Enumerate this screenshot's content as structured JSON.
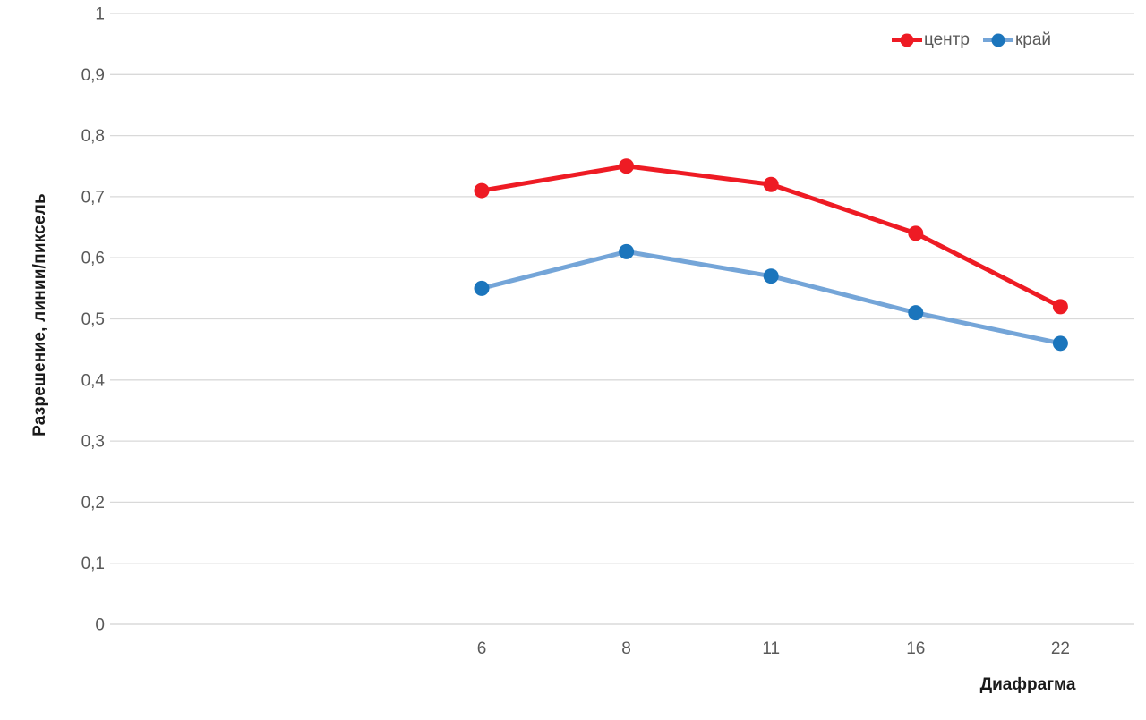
{
  "chart_data": {
    "type": "line",
    "categories": [
      "6",
      "8",
      "11",
      "16",
      "22"
    ],
    "series": [
      {
        "name": "центр",
        "values": [
          0.71,
          0.75,
          0.72,
          0.64,
          0.52
        ],
        "line_color": "#ee1b24",
        "marker_color": "#ee1b24"
      },
      {
        "name": "край",
        "values": [
          0.55,
          0.61,
          0.57,
          0.51,
          0.46
        ],
        "line_color": "#74a5d8",
        "marker_color": "#1b75bc"
      }
    ],
    "title": "",
    "xlabel": "Диафрагма",
    "ylabel": "Разрешение, линии/пиксель",
    "ylim": [
      0,
      1
    ],
    "ytick_step": 0.1,
    "ytick_labels": [
      "0",
      "0,1",
      "0,2",
      "0,3",
      "0,4",
      "0,5",
      "0,6",
      "0,7",
      "0,8",
      "0,9",
      "1"
    ],
    "grid": true,
    "legend_position": "top-right",
    "colors": {
      "background": "#ffffff",
      "gridline": "#d9d9d9",
      "axis_line": "#d2d2d2",
      "tick_label": "#595959",
      "axis_title": "#1a1a1a",
      "legend_text": "#595959"
    }
  }
}
